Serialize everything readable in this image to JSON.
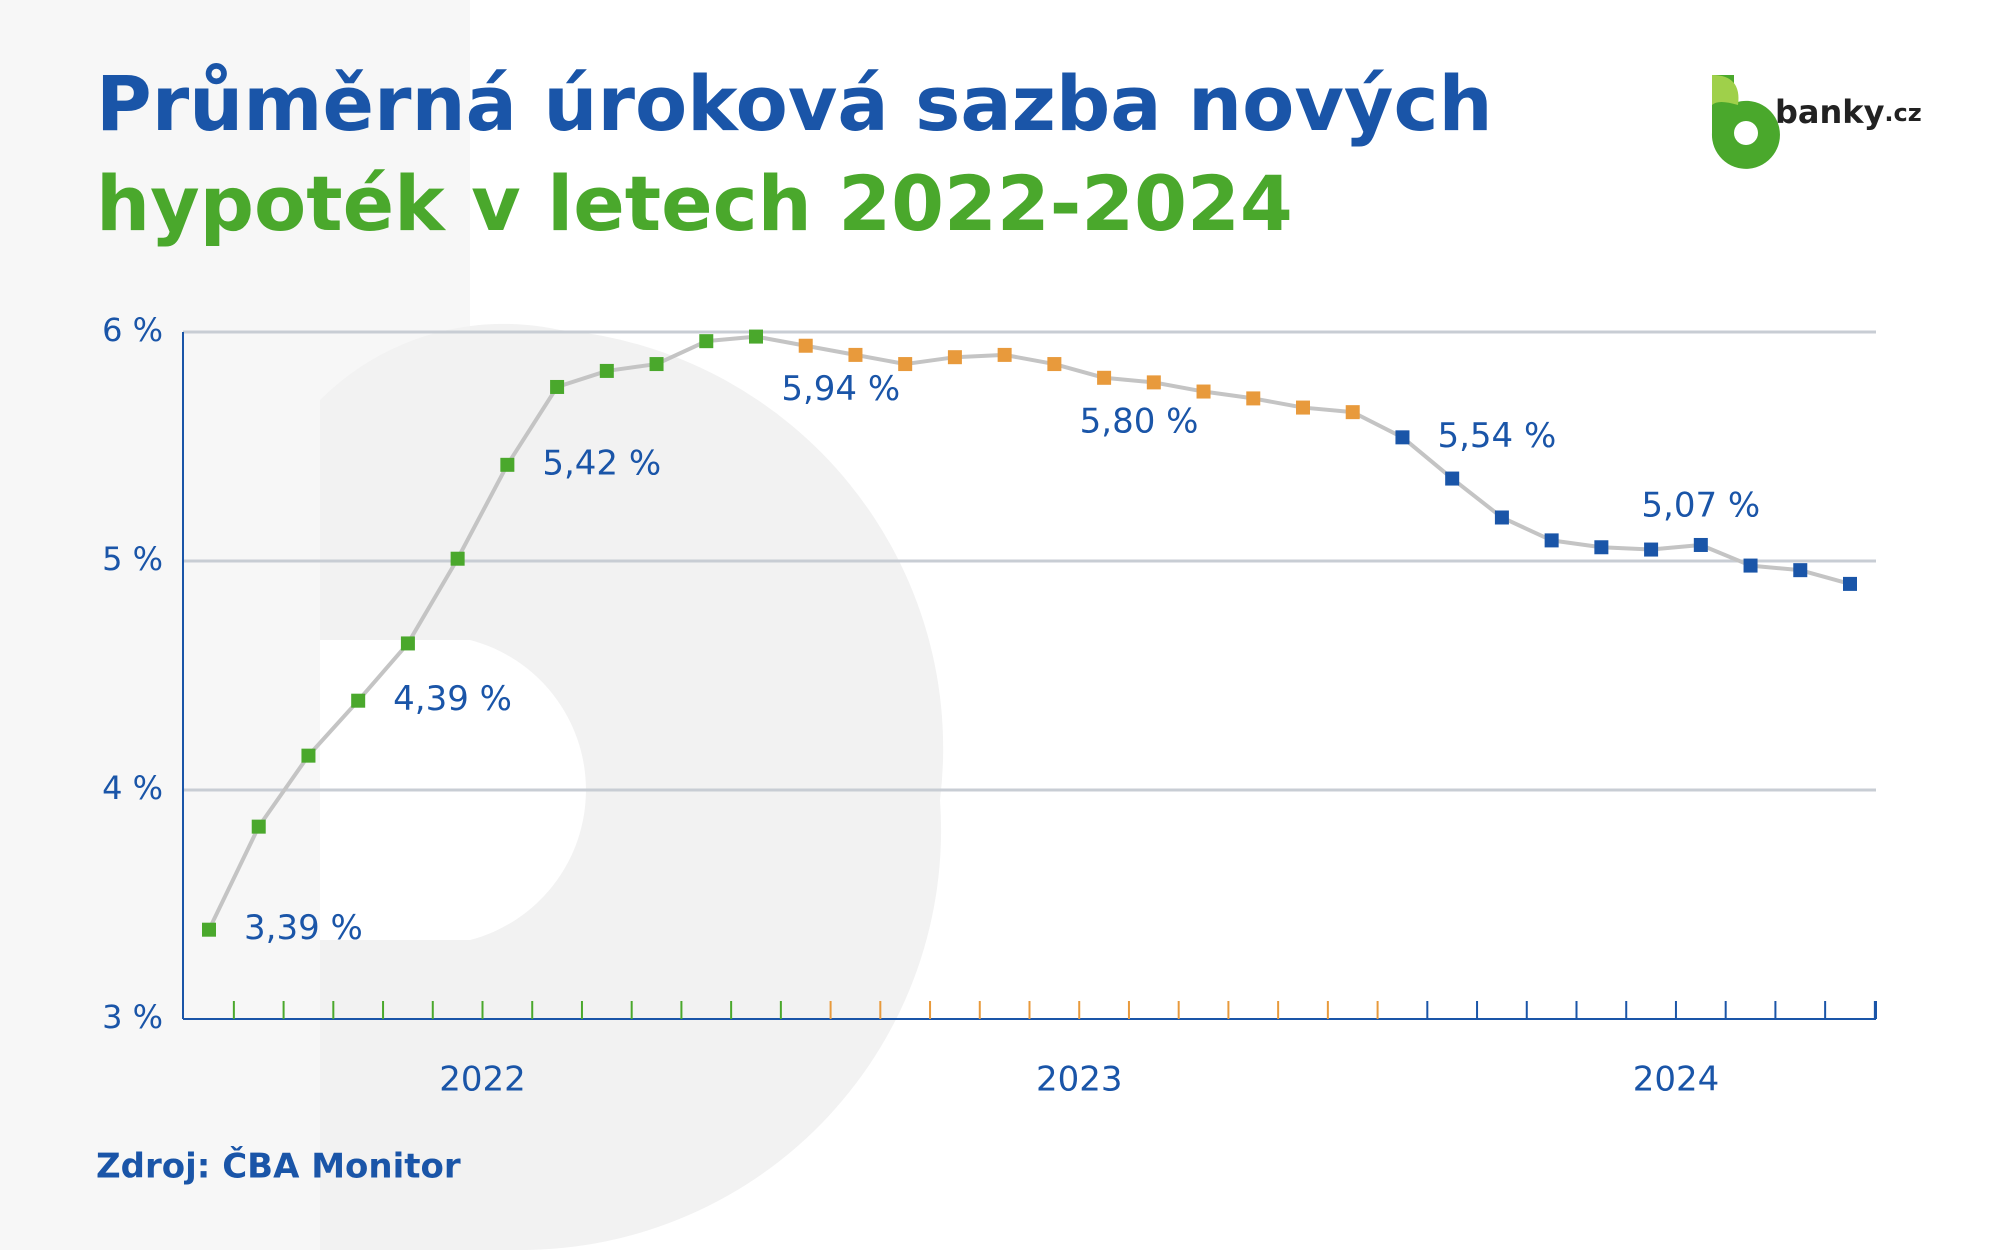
{
  "chart_data": {
    "type": "line",
    "title": "Průměrná úroková sazba nových",
    "subtitle": "hypoték v letech 2022-2024",
    "brand": "banky",
    "brand_suffix": ".cz",
    "source": "Zdroj: ČBA Monitor",
    "line_color": "#c4c4c4",
    "ylim": [
      3,
      6
    ],
    "yticks": [
      {
        "value": 3,
        "label": "3 %"
      },
      {
        "value": 4,
        "label": "4 %"
      },
      {
        "value": 5,
        "label": "5 %"
      },
      {
        "value": 6,
        "label": "6 %"
      }
    ],
    "grid": true,
    "series": [
      {
        "name": "2022",
        "color": "#4aa82c",
        "values": [
          3.39,
          3.84,
          4.15,
          4.39,
          4.64,
          5.01,
          5.42,
          5.76,
          5.83,
          5.86,
          5.96,
          5.98
        ],
        "value_labels": [
          "3,39 %",
          null,
          null,
          "4,39 %",
          null,
          null,
          "5,42 %",
          null,
          null,
          null,
          null,
          null
        ]
      },
      {
        "name": "2023",
        "color": "#e89a3c",
        "values": [
          5.94,
          5.9,
          5.86,
          5.89,
          5.9,
          5.86,
          5.8,
          5.78,
          5.74,
          5.71,
          5.67,
          5.65
        ],
        "value_labels": [
          "5,94 %",
          null,
          null,
          null,
          null,
          null,
          "5,80 %",
          null,
          null,
          null,
          null,
          null
        ]
      },
      {
        "name": "2024",
        "color": "#1a55a8",
        "values": [
          5.54,
          5.36,
          5.19,
          5.09,
          5.06,
          5.05,
          5.07,
          4.98,
          4.96,
          4.9
        ],
        "value_labels": [
          "5,54 %",
          null,
          null,
          null,
          null,
          null,
          "5,07 %",
          null,
          null,
          null
        ]
      }
    ]
  }
}
